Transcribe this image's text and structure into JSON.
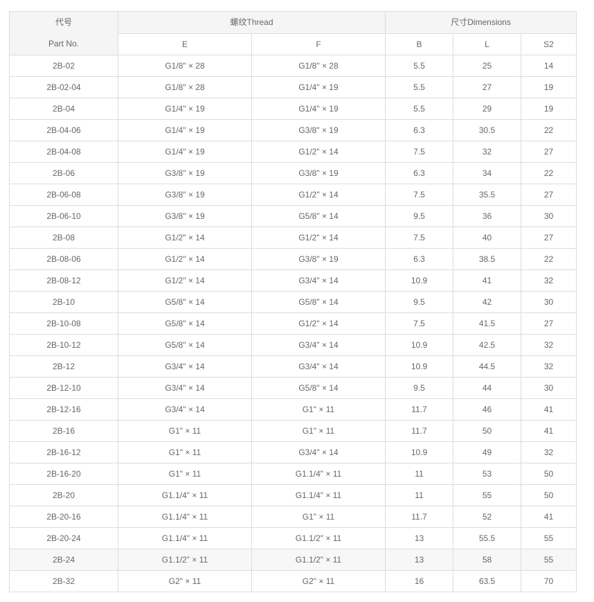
{
  "table": {
    "header": {
      "part_cn": "代号",
      "part_en": "Part No.",
      "thread": "螺纹Thread",
      "dimensions": "尺寸Dimensions",
      "sub": [
        "E",
        "F",
        "B",
        "L",
        "S2"
      ]
    },
    "highlighted_row": "2B-24",
    "rows": [
      [
        "2B-02",
        "G1/8\" × 28",
        "G1/8\" × 28",
        "5.5",
        "25",
        "14"
      ],
      [
        "2B-02-04",
        "G1/8\" × 28",
        "G1/4\" × 19",
        "5.5",
        "27",
        "19"
      ],
      [
        "2B-04",
        "G1/4\" × 19",
        "G1/4\" × 19",
        "5.5",
        "29",
        "19"
      ],
      [
        "2B-04-06",
        "G1/4\" × 19",
        "G3/8\" × 19",
        "6.3",
        "30.5",
        "22"
      ],
      [
        "2B-04-08",
        "G1/4\" × 19",
        "G1/2\" × 14",
        "7.5",
        "32",
        "27"
      ],
      [
        "2B-06",
        "G3/8\" × 19",
        "G3/8\" × 19",
        "6.3",
        "34",
        "22"
      ],
      [
        "2B-06-08",
        "G3/8\" × 19",
        "G1/2\" × 14",
        "7.5",
        "35.5",
        "27"
      ],
      [
        "2B-06-10",
        "G3/8\" × 19",
        "G5/8\" × 14",
        "9.5",
        "36",
        "30"
      ],
      [
        "2B-08",
        "G1/2\" × 14",
        "G1/2\" × 14",
        "7.5",
        "40",
        "27"
      ],
      [
        "2B-08-06",
        "G1/2\" × 14",
        "G3/8\" × 19",
        "6.3",
        "38.5",
        "22"
      ],
      [
        "2B-08-12",
        "G1/2\" × 14",
        "G3/4\" × 14",
        "10.9",
        "41",
        "32"
      ],
      [
        "2B-10",
        "G5/8\" × 14",
        "G5/8\" × 14",
        "9.5",
        "42",
        "30"
      ],
      [
        "2B-10-08",
        "G5/8\" × 14",
        "G1/2\" × 14",
        "7.5",
        "41.5",
        "27"
      ],
      [
        "2B-10-12",
        "G5/8\" × 14",
        "G3/4\" × 14",
        "10.9",
        "42.5",
        "32"
      ],
      [
        "2B-12",
        "G3/4\" × 14",
        "G3/4\" × 14",
        "10.9",
        "44.5",
        "32"
      ],
      [
        "2B-12-10",
        "G3/4\" × 14",
        "G5/8\" × 14",
        "9.5",
        "44",
        "30"
      ],
      [
        "2B-12-16",
        "G3/4\" × 14",
        "G1\" × 11",
        "11.7",
        "46",
        "41"
      ],
      [
        "2B-16",
        "G1\" × 11",
        "G1\" × 11",
        "11.7",
        "50",
        "41"
      ],
      [
        "2B-16-12",
        "G1\" × 11",
        "G3/4\" × 14",
        "10.9",
        "49",
        "32"
      ],
      [
        "2B-16-20",
        "G1\" × 11",
        "G1.1/4\" × 11",
        "11",
        "53",
        "50"
      ],
      [
        "2B-20",
        "G1.1/4\" × 11",
        "G1.1/4\" × 11",
        "11",
        "55",
        "50"
      ],
      [
        "2B-20-16",
        "G1.1/4\" × 11",
        "G1\" × 11",
        "11.7",
        "52",
        "41"
      ],
      [
        "2B-20-24",
        "G1.1/4\" × 11",
        "G1.1/2\" × 11",
        "13",
        "55.5",
        "55"
      ],
      [
        "2B-24",
        "G1.1/2\" × 11",
        "G1.1/2\" × 11",
        "13",
        "58",
        "55"
      ],
      [
        "2B-32",
        "G2\" × 11",
        "G2\" × 11",
        "16",
        "63.5",
        "70"
      ]
    ]
  }
}
